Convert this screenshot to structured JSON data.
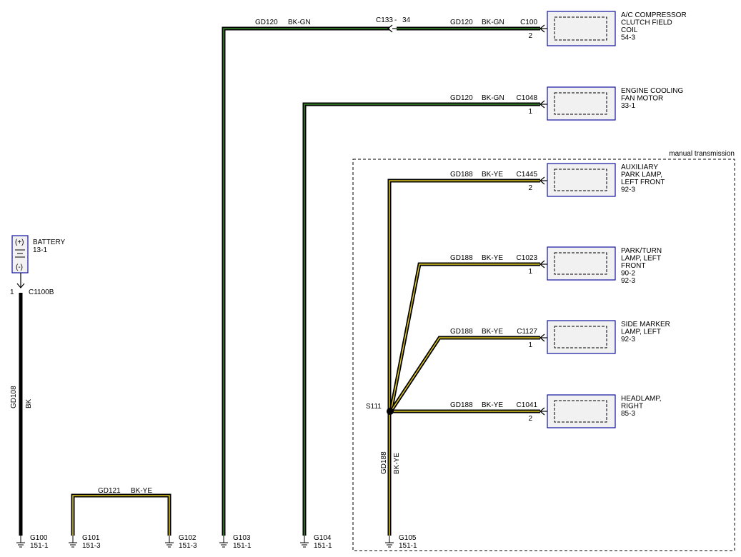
{
  "colors": {
    "wire_black": "#000000",
    "stripe_green": "#3a8a2a",
    "stripe_yellow": "#e0c820",
    "component_border": "#1010a0",
    "component_fill": "#f1f1f1"
  },
  "region": {
    "label": "manual transmission"
  },
  "battery": {
    "title": "BATTERY",
    "ref": "13-1",
    "plus": "(+)",
    "minus": "(-)",
    "connector": "C1100B",
    "pin": "1",
    "circuit": "GD108",
    "color": "BK"
  },
  "components": [
    {
      "lines": [
        "A/C COMPRESSOR",
        "CLUTCH FIELD",
        "COIL",
        "54-3"
      ],
      "connector": "C100",
      "pin": "2",
      "circuit": "GD120",
      "color": "BK-GN"
    },
    {
      "lines": [
        "ENGINE COOLING",
        "FAN MOTOR",
        "33-1"
      ],
      "connector": "C1048",
      "pin": "1",
      "circuit": "GD120",
      "color": "BK-GN"
    },
    {
      "lines": [
        "AUXILIARY",
        "PARK LAMP,",
        "LEFT FRONT",
        "92-3"
      ],
      "connector": "C1445",
      "pin": "2",
      "circuit": "GD188",
      "color": "BK-YE"
    },
    {
      "lines": [
        "PARK/TURN",
        "LAMP, LEFT",
        "FRONT",
        "90-2",
        "92-3"
      ],
      "connector": "C1023",
      "pin": "1",
      "circuit": "GD188",
      "color": "BK-YE"
    },
    {
      "lines": [
        "SIDE MARKER",
        "LAMP, LEFT",
        "92-3"
      ],
      "connector": "C1127",
      "pin": "1",
      "circuit": "GD188",
      "color": "BK-YE"
    },
    {
      "lines": [
        "HEADLAMP,",
        "RIGHT",
        "85-3"
      ],
      "connector": "C1041",
      "pin": "2",
      "circuit": "GD188",
      "color": "BK-YE"
    }
  ],
  "inline_connector": {
    "name": "C133",
    "sep": "-",
    "pin": "34",
    "circuit": "GD120",
    "color": "BK-GN"
  },
  "splice": {
    "name": "S111",
    "circuit": "GD188",
    "color": "BK-YE"
  },
  "jumper": {
    "circuit": "GD121",
    "color": "BK-YE"
  },
  "grounds": [
    {
      "name": "G100",
      "ref": "151-1"
    },
    {
      "name": "G101",
      "ref": "151-3"
    },
    {
      "name": "G102",
      "ref": "151-3"
    },
    {
      "name": "G103",
      "ref": "151-1"
    },
    {
      "name": "G104",
      "ref": "151-1"
    },
    {
      "name": "G105",
      "ref": "151-1"
    }
  ]
}
